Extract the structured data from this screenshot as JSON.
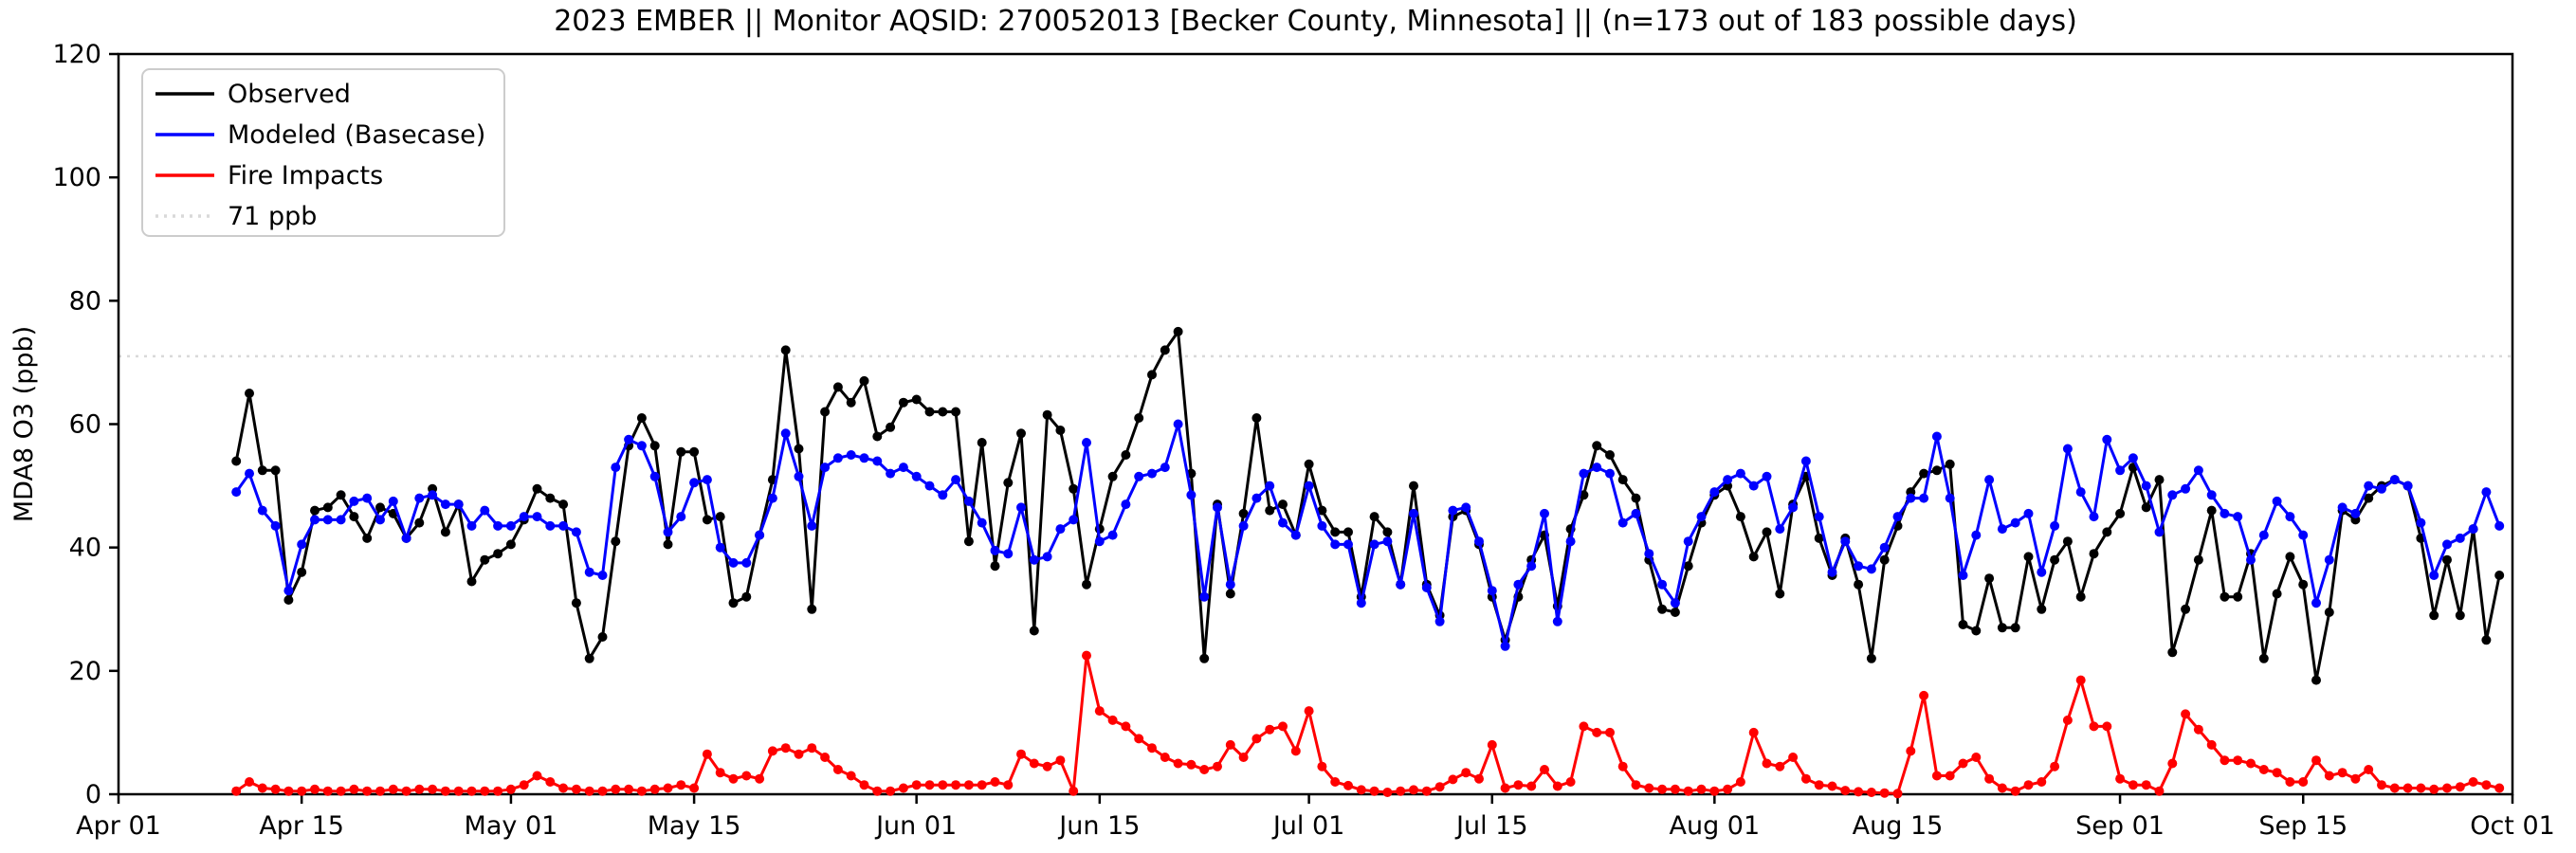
{
  "figure": {
    "title": "2023 EMBER || Monitor AQSID: 270052013 [Becker County, Minnesota] || (n=173 out of 183 possible days)",
    "background": "#ffffff"
  },
  "chart_data": {
    "type": "line",
    "title": "2023 EMBER || Monitor AQSID: 270052013 [Becker County, Minnesota] || (n=173 out of 183 possible days)",
    "xlabel": "",
    "ylabel": "MDA8 O3 (ppb)",
    "ylim": [
      0,
      120
    ],
    "yticks": [
      0,
      20,
      40,
      60,
      80,
      100,
      120
    ],
    "x_axis": {
      "start_label": "Apr 01",
      "end_label": "Oct 01",
      "total_days": 183,
      "ticks": [
        {
          "label": "Apr 01",
          "day": 0
        },
        {
          "label": "Apr 15",
          "day": 14
        },
        {
          "label": "May 01",
          "day": 30
        },
        {
          "label": "May 15",
          "day": 44
        },
        {
          "label": "Jun 01",
          "day": 61
        },
        {
          "label": "Jun 15",
          "day": 75
        },
        {
          "label": "Jul 01",
          "day": 91
        },
        {
          "label": "Jul 15",
          "day": 105
        },
        {
          "label": "Aug 01",
          "day": 122
        },
        {
          "label": "Aug 15",
          "day": 136
        },
        {
          "label": "Sep 01",
          "day": 153
        },
        {
          "label": "Sep 15",
          "day": 167
        },
        {
          "label": "Oct 01",
          "day": 183
        }
      ]
    },
    "threshold": {
      "label": "71 ppb",
      "value": 71,
      "color": "#d9d9d9",
      "style": "dotted"
    },
    "grid": false,
    "legend_position": "upper-left",
    "series_start_day_offset": 9,
    "series_start_date": "Apr 10",
    "series_end_date": "Sep 30",
    "series": [
      {
        "name": "Observed",
        "color": "#000000",
        "values": [
          54,
          65,
          52.5,
          52.5,
          31.5,
          36,
          46,
          46.5,
          48.5,
          45,
          41.5,
          46.5,
          45.5,
          41.5,
          44,
          49.5,
          42.5,
          47,
          34.5,
          38,
          39,
          40.5,
          44.5,
          49.5,
          48,
          47,
          31,
          22,
          25.5,
          41,
          56.5,
          61,
          56.5,
          40.5,
          55.5,
          55.5,
          44.5,
          45,
          31,
          32,
          42,
          51,
          72,
          56,
          30,
          62,
          66,
          63.5,
          67,
          58,
          59.5,
          63.5,
          64,
          62,
          62,
          62,
          41,
          57,
          37,
          50.5,
          58.5,
          26.5,
          61.5,
          59,
          49.5,
          34,
          43,
          51.5,
          55,
          61,
          68,
          72,
          75,
          52,
          22,
          47,
          32.5,
          45.5,
          61,
          46,
          47,
          42,
          53.5,
          46,
          42.5,
          42.5,
          32,
          45,
          42.5,
          34,
          50,
          34,
          29,
          45,
          46,
          40.5,
          32,
          25,
          32,
          38,
          42,
          30.5,
          43,
          48.5,
          56.5,
          55,
          51,
          48,
          38,
          30,
          29.5,
          37,
          44,
          48.5,
          50,
          45,
          38.5,
          42.5,
          32.5,
          47,
          51.5,
          41.5,
          35.5,
          41.5,
          34,
          22,
          38,
          43.5,
          49,
          52,
          52.5,
          53.5,
          27.5,
          26.5,
          35,
          27,
          27,
          38.5,
          30,
          38,
          41,
          32,
          39,
          42.5,
          45.5,
          53,
          46.5,
          51,
          23,
          30,
          38,
          46,
          32,
          32,
          39,
          22,
          32.5,
          38.5,
          34,
          18.5,
          29.5,
          46,
          44.5,
          48,
          50,
          51,
          50,
          41.5,
          29,
          38,
          29,
          43,
          25,
          35.5
        ]
      },
      {
        "name": "Modeled (Basecase)",
        "color": "#0000ff",
        "values": [
          49,
          52,
          46,
          43.5,
          33,
          40.5,
          44.5,
          44.5,
          44.5,
          47.5,
          48,
          44.5,
          47.5,
          41.5,
          48,
          48.5,
          47,
          47,
          43.5,
          46,
          43.5,
          43.5,
          45,
          45,
          43.5,
          43.5,
          42.5,
          36,
          35.5,
          53,
          57.5,
          56.5,
          51.5,
          42.5,
          45,
          50.5,
          51,
          40,
          37.5,
          37.5,
          42,
          48,
          58.5,
          51.5,
          43.5,
          53,
          54.5,
          55,
          54.5,
          54,
          52,
          53,
          51.5,
          50,
          48.5,
          51,
          47.5,
          44,
          39.5,
          39,
          46.5,
          38,
          38.5,
          43,
          44.5,
          57,
          41,
          42,
          47,
          51.5,
          52,
          53,
          60,
          48.5,
          32,
          46.5,
          34,
          43.5,
          48,
          50,
          44,
          42,
          50,
          43.5,
          40.5,
          40.5,
          31,
          40.5,
          41,
          34,
          45.5,
          33.5,
          28,
          46,
          46.5,
          41,
          33,
          24,
          34,
          37,
          45.5,
          28,
          41,
          52,
          53,
          52,
          44,
          45.5,
          39,
          34,
          31,
          41,
          45,
          49,
          51,
          52,
          50,
          51.5,
          43,
          46.5,
          54,
          45,
          36,
          41,
          37,
          36.5,
          40,
          45,
          48,
          48,
          58,
          48,
          35.5,
          42,
          51,
          43,
          44,
          45.5,
          36,
          43.5,
          56,
          49,
          45,
          57.5,
          52.5,
          54.5,
          50,
          42.5,
          48.5,
          49.5,
          52.5,
          48.5,
          45.5,
          45,
          38,
          42,
          47.5,
          45,
          42,
          31,
          38,
          46.5,
          45.5,
          50,
          49.5,
          51,
          50,
          44,
          35.5,
          40.5,
          41.5,
          43,
          49,
          43.5
        ]
      },
      {
        "name": "Fire Impacts",
        "color": "#ff0000",
        "values": [
          0.5,
          2,
          1,
          0.8,
          0.5,
          0.5,
          0.8,
          0.5,
          0.5,
          0.8,
          0.5,
          0.5,
          0.8,
          0.5,
          0.8,
          0.8,
          0.5,
          0.5,
          0.5,
          0.5,
          0.5,
          0.8,
          1.5,
          3,
          2,
          1,
          0.8,
          0.5,
          0.5,
          0.8,
          0.8,
          0.5,
          0.8,
          1,
          1.5,
          1,
          6.5,
          3.5,
          2.5,
          3,
          2.5,
          7,
          7.5,
          6.5,
          7.5,
          6,
          4,
          3,
          1.5,
          0.5,
          0.5,
          1,
          1.5,
          1.5,
          1.5,
          1.5,
          1.5,
          1.5,
          2,
          1.5,
          6.5,
          5,
          4.5,
          5.5,
          0.5,
          22.5,
          13.5,
          12,
          11,
          9,
          7.5,
          6,
          5,
          4.8,
          4,
          4.5,
          8,
          6,
          9,
          10.5,
          11,
          7,
          13.5,
          4.5,
          2,
          1.4,
          0.7,
          0.5,
          0.3,
          0.5,
          0.7,
          0.5,
          1.2,
          2.4,
          3.5,
          2.5,
          8,
          1,
          1.5,
          1.3,
          4,
          1.3,
          2,
          11,
          10,
          10,
          4.5,
          1.5,
          1,
          0.8,
          0.8,
          0.5,
          0.8,
          0.5,
          0.8,
          2,
          10,
          5,
          4.5,
          6,
          2.5,
          1.5,
          1.3,
          0.6,
          0.4,
          0.3,
          0.2,
          0.1,
          7,
          16,
          3,
          3,
          5,
          6,
          2.5,
          1,
          0.5,
          1.5,
          2,
          4.5,
          12,
          18.5,
          11,
          11,
          2.5,
          1.5,
          1.5,
          0.5,
          5,
          13,
          10.5,
          8,
          5.5,
          5.5,
          5,
          4,
          3.5,
          2,
          2,
          5.5,
          3,
          3.5,
          2.5,
          4,
          1.5,
          1,
          1,
          1,
          0.8,
          1,
          1.2,
          2,
          1.5,
          1
        ]
      }
    ],
    "legend_entries": [
      "Observed",
      "Modeled (Basecase)",
      "Fire Impacts",
      "71 ppb"
    ]
  }
}
